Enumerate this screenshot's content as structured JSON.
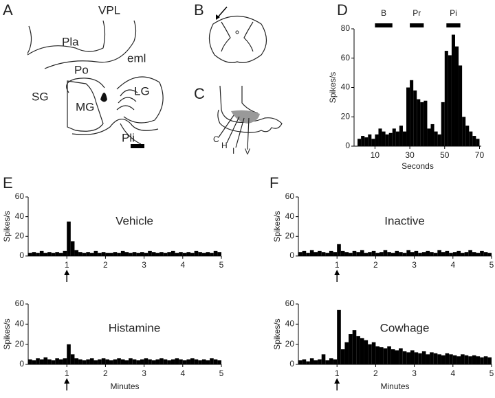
{
  "chart_data": [
    {
      "type": "histogram",
      "panel": "D",
      "ylabel": "Spikes/s",
      "xlabel": "Seconds",
      "color": "#000000",
      "bins": [
        0,
        2,
        4,
        6,
        8,
        10,
        12,
        14,
        16,
        18,
        20,
        22,
        24,
        26,
        28,
        30,
        32,
        34,
        36,
        38,
        40,
        42,
        44,
        46,
        48,
        50,
        52,
        54,
        56,
        58,
        60,
        62,
        64,
        66,
        68,
        70
      ],
      "values": [
        5,
        7,
        6,
        8,
        5,
        8,
        12,
        10,
        8,
        9,
        12,
        10,
        14,
        10,
        40,
        45,
        38,
        32,
        30,
        31,
        12,
        15,
        10,
        8,
        30,
        65,
        62,
        76,
        68,
        55,
        20,
        14,
        10,
        7,
        5
      ],
      "xlim": [
        -2,
        71
      ],
      "xticks": [
        10,
        30,
        50,
        70
      ],
      "ylim": [
        0,
        80
      ],
      "yticks": [
        0,
        20,
        40,
        60,
        80
      ],
      "stimulus_bars": [
        {
          "label": "B",
          "start": 10,
          "end": 20
        },
        {
          "label": "Pr",
          "start": 30,
          "end": 38
        },
        {
          "label": "Pi",
          "start": 51,
          "end": 59
        }
      ]
    },
    {
      "type": "histogram",
      "panel": "E",
      "label": "Vehicle",
      "ylabel": "Spikes/s",
      "color": "#000000",
      "arrow_at": 1,
      "bins": [
        0,
        0.1,
        0.2,
        0.3,
        0.4,
        0.5,
        0.6,
        0.7,
        0.8,
        0.9,
        1,
        1.1,
        1.2,
        1.3,
        1.4,
        1.5,
        1.6,
        1.7,
        1.8,
        1.9,
        2,
        2.1,
        2.2,
        2.3,
        2.4,
        2.5,
        2.6,
        2.7,
        2.8,
        2.9,
        3,
        3.1,
        3.2,
        3.3,
        3.4,
        3.5,
        3.6,
        3.7,
        3.8,
        3.9,
        4,
        4.1,
        4.2,
        4.3,
        4.4,
        4.5,
        4.6,
        4.7,
        4.8,
        4.9,
        5
      ],
      "values": [
        3,
        4,
        3,
        5,
        3,
        4,
        3,
        4,
        3,
        5,
        35,
        15,
        6,
        4,
        3,
        4,
        3,
        5,
        3,
        4,
        3,
        3,
        4,
        3,
        5,
        4,
        3,
        4,
        3,
        4,
        3,
        5,
        4,
        3,
        4,
        3,
        4,
        5,
        3,
        4,
        3,
        4,
        3,
        5,
        4,
        3,
        4,
        3,
        5,
        4
      ],
      "xlim": [
        0,
        5
      ],
      "xticks": [
        1,
        2,
        3,
        4,
        5
      ],
      "ylim": [
        0,
        60
      ],
      "yticks": [
        0,
        20,
        40,
        60
      ]
    },
    {
      "type": "histogram",
      "label": "Histamine",
      "ylabel": "Spikes/s",
      "xlabel": "Minutes",
      "color": "#000000",
      "arrow_at": 1,
      "bins": [
        0,
        0.1,
        0.2,
        0.3,
        0.4,
        0.5,
        0.6,
        0.7,
        0.8,
        0.9,
        1,
        1.1,
        1.2,
        1.3,
        1.4,
        1.5,
        1.6,
        1.7,
        1.8,
        1.9,
        2,
        2.1,
        2.2,
        2.3,
        2.4,
        2.5,
        2.6,
        2.7,
        2.8,
        2.9,
        3,
        3.1,
        3.2,
        3.3,
        3.4,
        3.5,
        3.6,
        3.7,
        3.8,
        3.9,
        4,
        4.1,
        4.2,
        4.3,
        4.4,
        4.5,
        4.6,
        4.7,
        4.8,
        4.9,
        5
      ],
      "values": [
        5,
        4,
        6,
        5,
        7,
        5,
        4,
        6,
        5,
        6,
        20,
        10,
        6,
        5,
        4,
        5,
        6,
        4,
        5,
        6,
        5,
        4,
        5,
        6,
        5,
        4,
        6,
        5,
        4,
        5,
        6,
        5,
        4,
        5,
        6,
        5,
        4,
        5,
        6,
        5,
        4,
        5,
        6,
        5,
        4,
        5,
        4,
        6,
        5,
        4
      ],
      "xlim": [
        0,
        5
      ],
      "xticks": [
        1,
        2,
        3,
        4,
        5
      ],
      "ylim": [
        0,
        60
      ],
      "yticks": [
        0,
        20,
        40,
        60
      ]
    },
    {
      "type": "histogram",
      "panel": "F",
      "label": "Inactive",
      "ylabel": "Spikes/s",
      "color": "#000000",
      "arrow_at": 1,
      "bins": [
        0,
        0.1,
        0.2,
        0.3,
        0.4,
        0.5,
        0.6,
        0.7,
        0.8,
        0.9,
        1,
        1.1,
        1.2,
        1.3,
        1.4,
        1.5,
        1.6,
        1.7,
        1.8,
        1.9,
        2,
        2.1,
        2.2,
        2.3,
        2.4,
        2.5,
        2.6,
        2.7,
        2.8,
        2.9,
        3,
        3.1,
        3.2,
        3.3,
        3.4,
        3.5,
        3.6,
        3.7,
        3.8,
        3.9,
        4,
        4.1,
        4.2,
        4.3,
        4.4,
        4.5,
        4.6,
        4.7,
        4.8,
        4.9,
        5
      ],
      "values": [
        4,
        5,
        3,
        6,
        4,
        5,
        4,
        3,
        5,
        4,
        12,
        5,
        4,
        3,
        5,
        4,
        6,
        3,
        4,
        5,
        3,
        4,
        6,
        4,
        3,
        5,
        4,
        3,
        6,
        4,
        5,
        3,
        4,
        5,
        4,
        3,
        6,
        4,
        5,
        3,
        4,
        5,
        3,
        4,
        6,
        4,
        3,
        5,
        4,
        3
      ],
      "xlim": [
        0,
        5
      ],
      "xticks": [
        1,
        2,
        3,
        4,
        5
      ],
      "ylim": [
        0,
        60
      ],
      "yticks": [
        0,
        20,
        40,
        60
      ]
    },
    {
      "type": "histogram",
      "label": "Cowhage",
      "ylabel": "Spikes/s",
      "xlabel": "Minutes",
      "color": "#000000",
      "arrow_at": 1,
      "bins": [
        0,
        0.1,
        0.2,
        0.3,
        0.4,
        0.5,
        0.6,
        0.7,
        0.8,
        0.9,
        1,
        1.1,
        1.2,
        1.3,
        1.4,
        1.5,
        1.6,
        1.7,
        1.8,
        1.9,
        2,
        2.1,
        2.2,
        2.3,
        2.4,
        2.5,
        2.6,
        2.7,
        2.8,
        2.9,
        3,
        3.1,
        3.2,
        3.3,
        3.4,
        3.5,
        3.6,
        3.7,
        3.8,
        3.9,
        4,
        4.1,
        4.2,
        4.3,
        4.4,
        4.5,
        4.6,
        4.7,
        4.8,
        4.9,
        5
      ],
      "values": [
        4,
        5,
        3,
        6,
        4,
        5,
        10,
        4,
        6,
        5,
        54,
        15,
        22,
        30,
        34,
        28,
        26,
        24,
        20,
        22,
        18,
        17,
        16,
        18,
        15,
        14,
        16,
        13,
        12,
        14,
        12,
        11,
        13,
        10,
        12,
        11,
        10,
        9,
        11,
        10,
        9,
        8,
        10,
        9,
        8,
        9,
        8,
        7,
        8,
        7
      ],
      "xlim": [
        0,
        5
      ],
      "xticks": [
        1,
        2,
        3,
        4,
        5
      ],
      "ylim": [
        0,
        60
      ],
      "yticks": [
        0,
        20,
        40,
        60
      ]
    }
  ],
  "diagrams": [
    {
      "panel": "A",
      "labels": [
        "Pla",
        "VPL",
        "Po",
        "eml",
        "SG",
        "MG",
        "LG",
        "Pli"
      ]
    },
    {
      "panel": "B"
    },
    {
      "panel": "C",
      "labels": [
        "C",
        "H",
        "I",
        "V"
      ]
    }
  ]
}
